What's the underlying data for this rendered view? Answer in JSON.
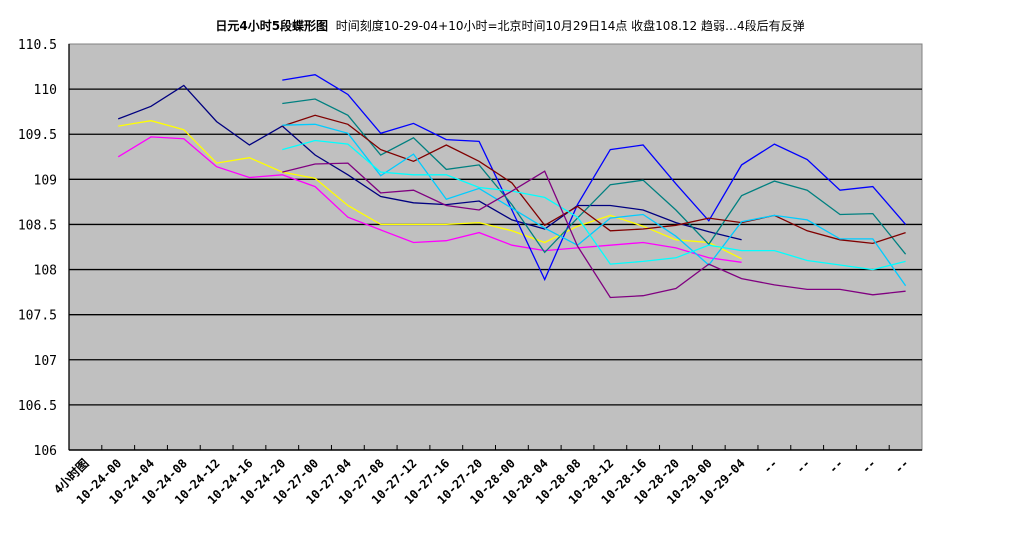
{
  "header": {
    "title_bold": "日元4小时5段蝶形图",
    "title_rest": "时间刻度10-29-04+10小时=北京时间10月29日14点  收盘108.12  趋弱…4段后有反弹"
  },
  "chart_data": {
    "type": "line",
    "title": "日元4小时5段蝶形图  时间刻度10-29-04+10小时=北京时间10月29日14点  收盘108.12  趋弱…4段后有反弹",
    "xlabel": "",
    "ylabel": "",
    "ylim": [
      106,
      110.5
    ],
    "yticks": [
      106,
      106.5,
      107,
      107.5,
      108,
      108.5,
      109,
      109.5,
      110,
      110.5
    ],
    "grid": true,
    "legend": "none",
    "plot_background": "#C0C0C0",
    "categories": [
      "4小时图",
      "10-24-00",
      "10-24-04",
      "10-24-08",
      "10-24-12",
      "10-24-16",
      "10-24-20",
      "10-27-00",
      "10-27-04",
      "10-27-08",
      "10-27-12",
      "10-27-16",
      "10-27-20",
      "10-28-00",
      "10-28-04",
      "10-28-08",
      "10-28-12",
      "10-28-16",
      "10-28-20",
      "10-29-00",
      "10-29-04",
      "--",
      "--",
      "--",
      "--",
      "--"
    ],
    "series": [
      {
        "name": "navy",
        "color": "#000080",
        "values": [
          null,
          109.67,
          109.81,
          110.04,
          109.64,
          109.38,
          109.59,
          109.27,
          109.05,
          108.81,
          108.74,
          108.72,
          108.76,
          108.55,
          108.45,
          108.71,
          108.71,
          108.66,
          108.52,
          108.42,
          108.33,
          null,
          null,
          null,
          null,
          null
        ]
      },
      {
        "name": "yellow",
        "color": "#FFFF00",
        "values": [
          null,
          109.59,
          109.65,
          109.55,
          109.18,
          109.24,
          109.08,
          109.01,
          108.71,
          108.5,
          108.5,
          108.5,
          108.52,
          108.43,
          108.3,
          108.48,
          108.6,
          108.48,
          108.33,
          108.3,
          108.12,
          null,
          null,
          null,
          null,
          null
        ]
      },
      {
        "name": "magenta",
        "color": "#FF00FF",
        "values": [
          null,
          109.25,
          109.47,
          109.45,
          109.14,
          109.02,
          109.05,
          108.92,
          108.58,
          108.44,
          108.3,
          108.32,
          108.41,
          108.27,
          108.21,
          108.24,
          108.27,
          108.3,
          108.24,
          108.13,
          108.08,
          null,
          null,
          null,
          null,
          null
        ]
      },
      {
        "name": "blue",
        "color": "#0000FF",
        "values": [
          null,
          null,
          null,
          null,
          null,
          null,
          110.1,
          110.16,
          109.94,
          109.51,
          109.62,
          109.44,
          109.42,
          108.66,
          107.89,
          108.72,
          109.33,
          109.38,
          108.95,
          108.54,
          109.16,
          109.39,
          109.22,
          108.88,
          108.92,
          108.5
        ]
      },
      {
        "name": "teal",
        "color": "#008080",
        "values": [
          null,
          null,
          null,
          null,
          null,
          null,
          109.84,
          109.89,
          109.71,
          109.27,
          109.46,
          109.11,
          109.16,
          108.72,
          108.19,
          108.57,
          108.94,
          108.99,
          108.66,
          108.28,
          108.82,
          108.98,
          108.88,
          108.61,
          108.62,
          108.17
        ]
      },
      {
        "name": "dark-red",
        "color": "#800000",
        "values": [
          null,
          null,
          null,
          null,
          null,
          null,
          109.59,
          109.71,
          109.61,
          109.33,
          109.2,
          109.38,
          109.2,
          108.96,
          108.49,
          108.7,
          108.43,
          108.45,
          108.49,
          108.57,
          108.52,
          108.6,
          108.43,
          108.33,
          108.29,
          108.41
        ]
      },
      {
        "name": "sky-blue",
        "color": "#00CCFF",
        "values": [
          null,
          null,
          null,
          null,
          null,
          null,
          109.6,
          109.61,
          109.51,
          109.04,
          109.28,
          108.78,
          108.9,
          108.68,
          108.46,
          108.27,
          108.57,
          108.61,
          108.37,
          108.05,
          108.53,
          108.6,
          108.55,
          108.34,
          108.34,
          107.82
        ]
      },
      {
        "name": "cyan",
        "color": "#00FFFF",
        "values": [
          null,
          null,
          null,
          null,
          null,
          null,
          109.33,
          109.43,
          109.39,
          109.08,
          109.05,
          109.05,
          108.91,
          108.87,
          108.8,
          108.58,
          108.06,
          108.09,
          108.13,
          108.27,
          108.21,
          108.21,
          108.1,
          108.05,
          108.0,
          108.09
        ]
      },
      {
        "name": "purple",
        "color": "#800080",
        "values": [
          null,
          null,
          null,
          null,
          null,
          null,
          109.08,
          109.17,
          109.18,
          108.85,
          108.88,
          108.71,
          108.66,
          108.87,
          109.09,
          108.26,
          107.69,
          107.71,
          107.79,
          108.06,
          107.9,
          107.83,
          107.78,
          107.78,
          107.72,
          107.76
        ]
      }
    ]
  }
}
